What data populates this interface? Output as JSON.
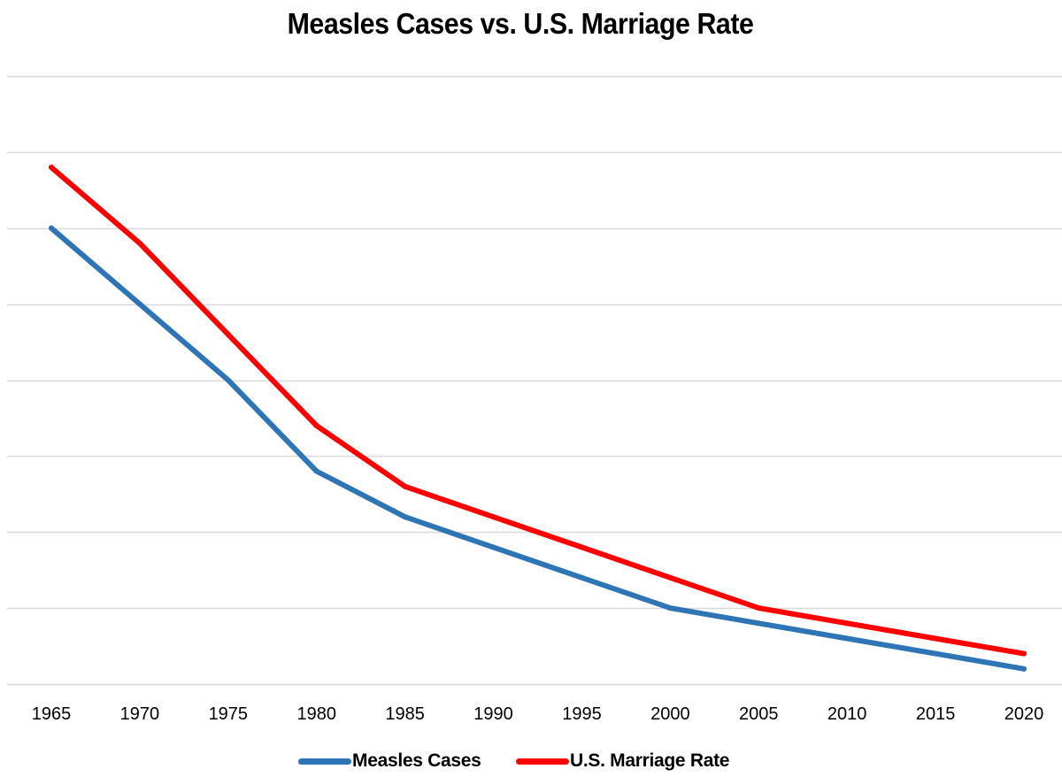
{
  "chart_data": {
    "type": "line",
    "title": "Measles Cases vs. U.S. Marriage Rate",
    "xlabel": "",
    "ylabel": "",
    "x": [
      "1965",
      "1970",
      "1975",
      "1980",
      "1985",
      "1990",
      "1995",
      "2000",
      "2005",
      "2010",
      "2015",
      "2020"
    ],
    "ylim": [
      0,
      8
    ],
    "y_tick_labels_shown": false,
    "grid": true,
    "legend": "bottom",
    "series": [
      {
        "name": "Measles Cases",
        "color": "#2E75B6",
        "values": [
          6.0,
          5.0,
          4.0,
          2.8,
          2.2,
          1.8,
          1.4,
          1.0,
          0.8,
          0.6,
          0.4,
          0.2
        ]
      },
      {
        "name": "U.S. Marriage Rate",
        "color": "#FF0000",
        "values": [
          6.8,
          5.8,
          4.6,
          3.4,
          2.6,
          2.2,
          1.8,
          1.4,
          1.0,
          0.8,
          0.6,
          0.4
        ]
      }
    ]
  }
}
